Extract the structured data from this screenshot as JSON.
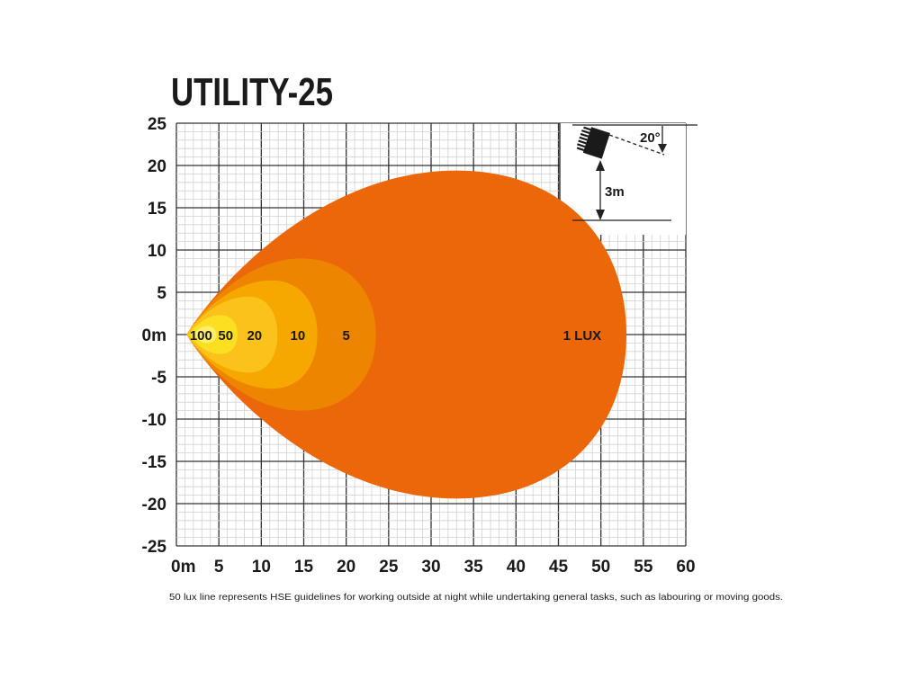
{
  "chart_data": {
    "type": "area",
    "title": "UTILITY-25",
    "xlim": [
      0,
      60
    ],
    "ylim": [
      -25,
      25
    ],
    "grid": true,
    "x_ticks": [
      "0m",
      "5",
      "10",
      "15",
      "20",
      "25",
      "30",
      "35",
      "40",
      "45",
      "50",
      "55",
      "60"
    ],
    "y_ticks": [
      "25",
      "20",
      "15",
      "10",
      "5",
      "0m",
      "-5",
      "-10",
      "-15",
      "-20",
      "-25"
    ],
    "contours": [
      {
        "label": "1 LUX",
        "lux": 1,
        "tip_x": 1.2,
        "max_x": 53,
        "half_width": 19.4,
        "x_at_max_width": 33,
        "label_x": 47.8,
        "color": "#EB6709"
      },
      {
        "label": "5",
        "lux": 5,
        "tip_x": 1.2,
        "max_x": 23.5,
        "half_width": 9.0,
        "x_at_max_width": 14.7,
        "label_x": 20.0,
        "color": "#EE8500"
      },
      {
        "label": "10",
        "lux": 10,
        "tip_x": 1.2,
        "max_x": 16.6,
        "half_width": 6.4,
        "x_at_max_width": 11.3,
        "label_x": 14.3,
        "color": "#F6A700"
      },
      {
        "label": "20",
        "lux": 20,
        "tip_x": 1.2,
        "max_x": 11.9,
        "half_width": 4.5,
        "x_at_max_width": 8.6,
        "label_x": 9.2,
        "color": "#FBC21C"
      },
      {
        "label": "50",
        "lux": 50,
        "tip_x": 1.5,
        "max_x": 7.2,
        "half_width": 2.3,
        "x_at_max_width": 5.2,
        "label_x": 5.8,
        "color": "#FDDF22"
      },
      {
        "label": "100",
        "lux": 100,
        "tip_x": 2.0,
        "max_x": 4.7,
        "half_width": 1.0,
        "x_at_max_width": 3.6,
        "label_x": 2.9,
        "color": "#FEEE6A"
      }
    ]
  },
  "inset": {
    "angle_label": "20°",
    "height_label": "3m"
  },
  "footnote": "50 lux line represents HSE guidelines for working outside at night while undertaking general tasks, such as labouring or moving goods."
}
